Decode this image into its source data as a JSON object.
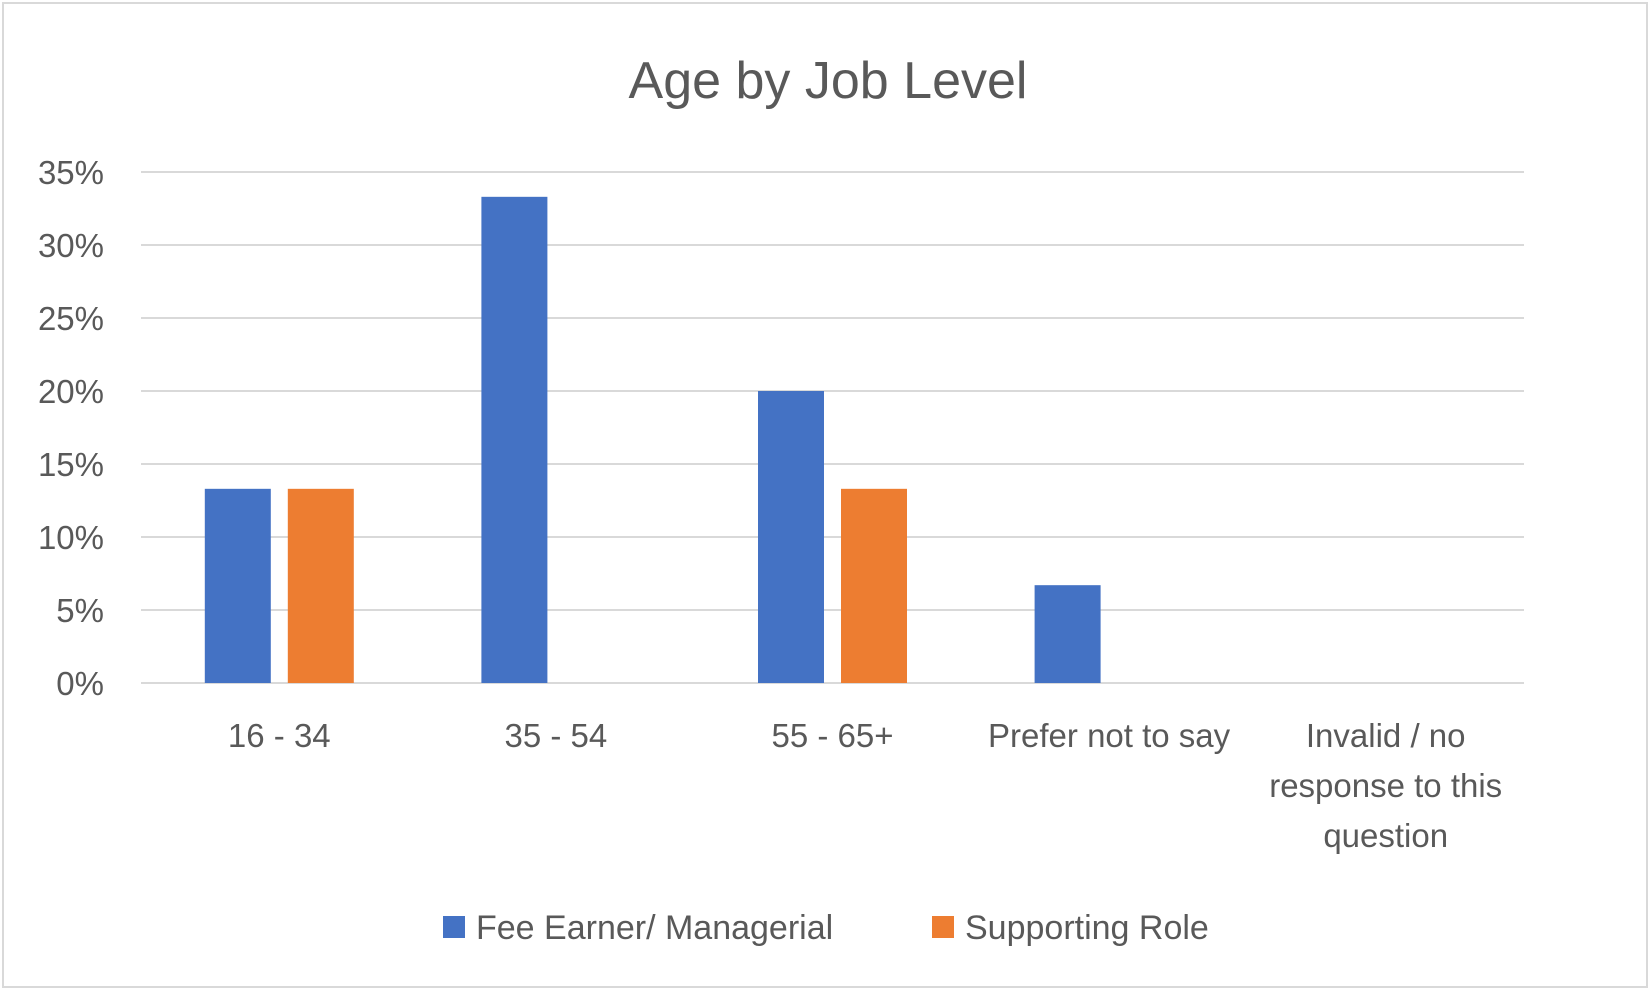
{
  "chart_data": {
    "type": "bar",
    "title": "Age by Job Level",
    "xlabel": "",
    "ylabel": "",
    "categories": [
      [
        "16 - 34"
      ],
      [
        "35 - 54"
      ],
      [
        "55 - 65+"
      ],
      [
        "Prefer not to say"
      ],
      [
        "Invalid / no",
        "response to this",
        "question"
      ]
    ],
    "series": [
      {
        "name": "Fee Earner/ Managerial",
        "color": "#4472c4",
        "values": [
          13.3,
          33.3,
          20.0,
          6.7,
          0
        ]
      },
      {
        "name": "Supporting Role",
        "color": "#ed7d31",
        "values": [
          13.3,
          0,
          13.3,
          0,
          0
        ]
      }
    ],
    "ylim": [
      0,
      35
    ],
    "yticks": [
      0,
      5,
      10,
      15,
      20,
      25,
      30,
      35
    ],
    "ytick_labels": [
      "0%",
      "5%",
      "10%",
      "15%",
      "20%",
      "25%",
      "30%",
      "35%"
    ],
    "grid": true,
    "legend": "bottom-center"
  }
}
